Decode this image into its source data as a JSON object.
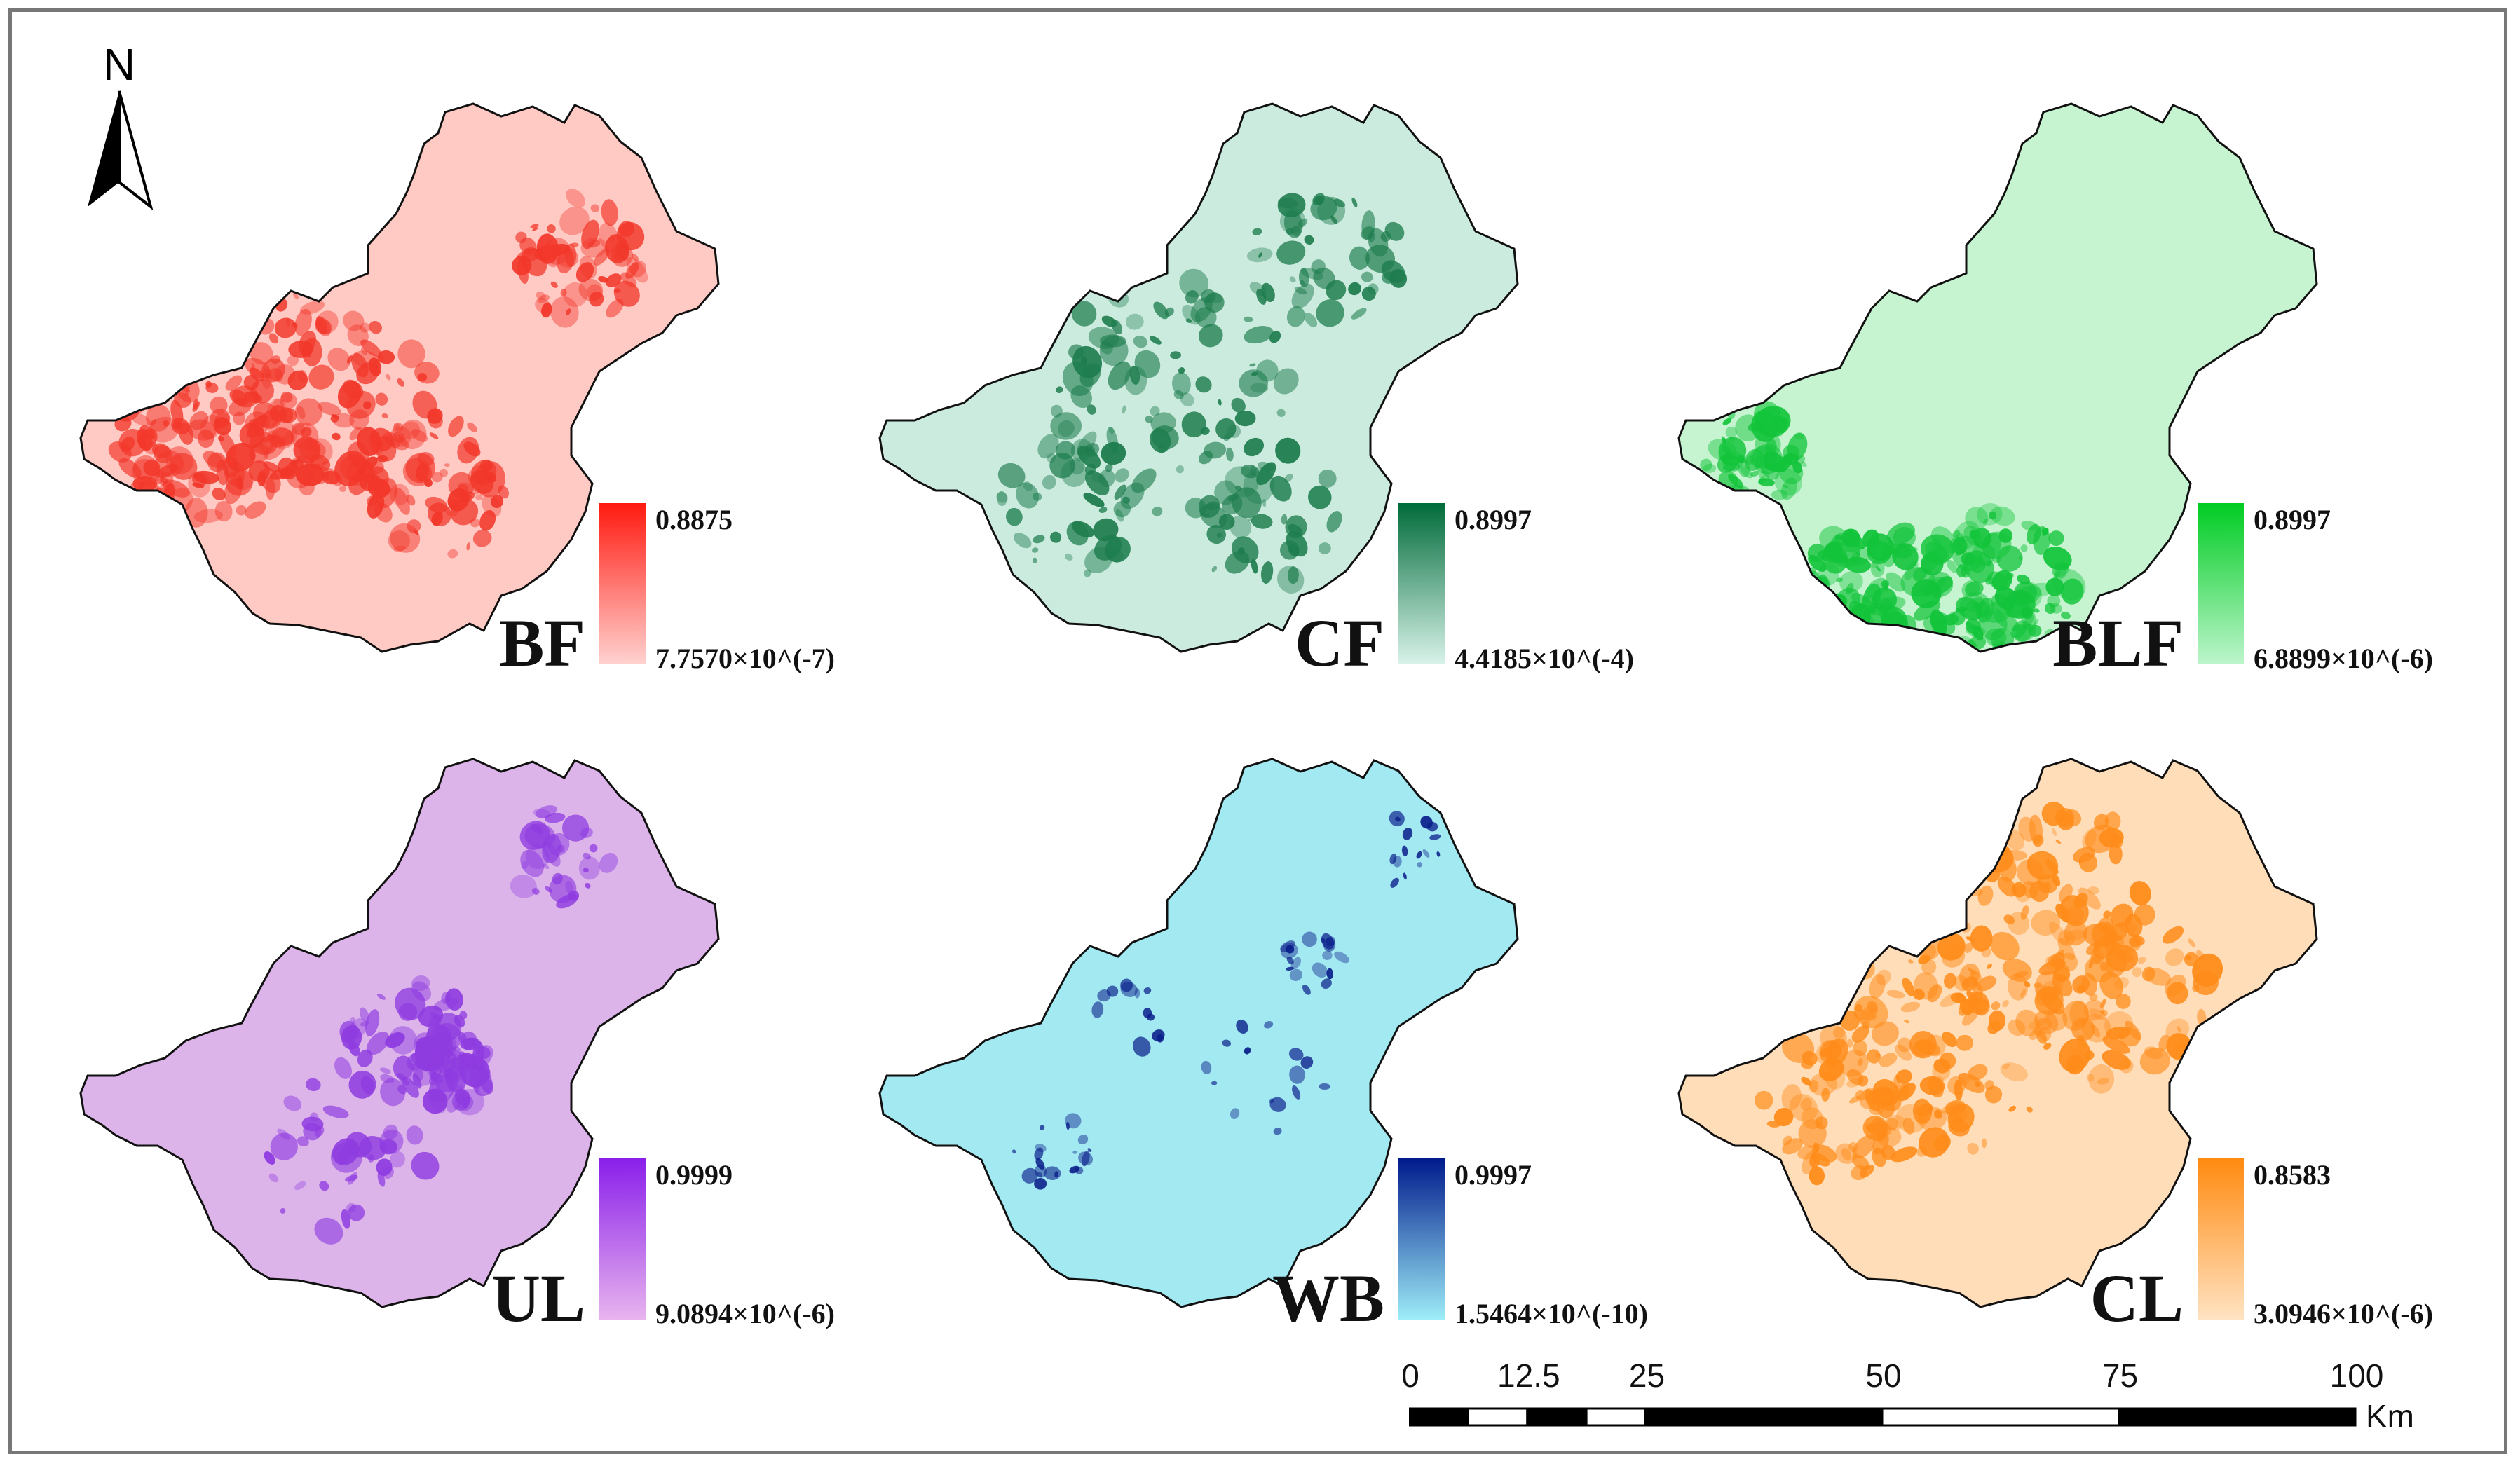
{
  "north_arrow": {
    "letter": "N"
  },
  "panels": [
    {
      "label": "BF",
      "legend_max": "0.8875",
      "legend_min": "7.7570×10^(-7)",
      "color_high": "#FF1A10",
      "color_low": "#FFD2D0",
      "base": "#FFC9C4",
      "accent": "#F2372A"
    },
    {
      "label": "CF",
      "legend_max": "0.8997",
      "legend_min": "4.4185×10^(-4)",
      "color_high": "#006B3A",
      "color_low": "#D9F3EA",
      "base": "#CCEBDF",
      "accent": "#1E7D4E"
    },
    {
      "label": "BLF",
      "legend_max": "0.8997",
      "legend_min": "6.8899×10^(-6)",
      "color_high": "#00CC22",
      "color_low": "#BDF5CC",
      "base": "#C6F4D0",
      "accent": "#12C43A"
    },
    {
      "label": "UL",
      "legend_max": "0.9999",
      "legend_min": "9.0894×10^(-6)",
      "color_high": "#8A1FEA",
      "color_low": "#E8B4EE",
      "base": "#DDB4EA",
      "accent": "#8E3BE0"
    },
    {
      "label": "WB",
      "legend_max": "0.9997",
      "legend_min": "1.5464×10^(-10)",
      "color_high": "#001A8C",
      "color_low": "#9EEDF8",
      "base": "#A2E9F2",
      "accent": "#0A1E8A"
    },
    {
      "label": "CL",
      "legend_max": "0.8583",
      "legend_min": "3.0946×10^(-6)",
      "color_high": "#FF8A10",
      "color_low": "#FFE3C2",
      "base": "#FFDDB8",
      "accent": "#FF8C1A"
    }
  ],
  "scale": {
    "ticks": [
      "0",
      "12.5",
      "25",
      "50",
      "75",
      "100"
    ],
    "values": [
      0,
      12.5,
      25,
      50,
      75,
      100
    ],
    "unit": "Km"
  }
}
